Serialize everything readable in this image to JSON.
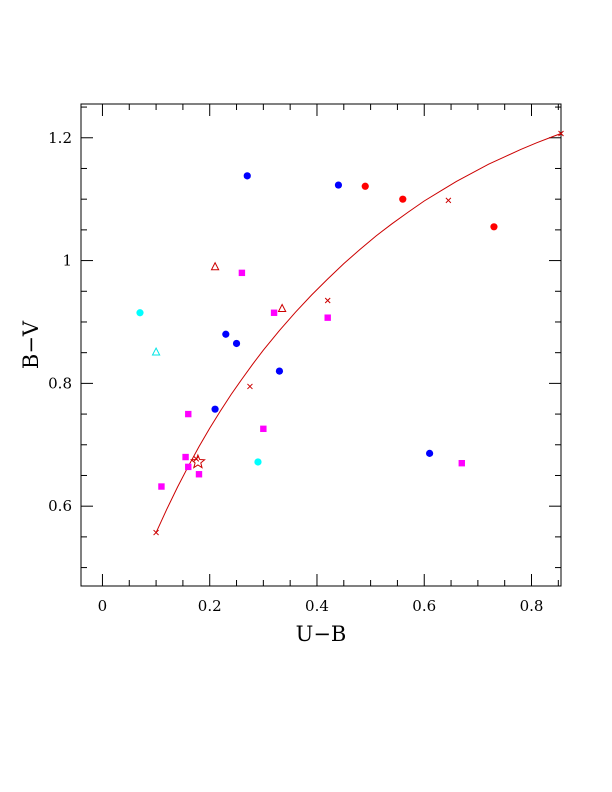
{
  "chart_data": {
    "type": "scatter",
    "xlabel": "U−B",
    "ylabel": "B−V",
    "xlim": [
      -0.04,
      0.855
    ],
    "ylim": [
      0.47,
      1.255
    ],
    "x_ticks": [
      0,
      0.2,
      0.4,
      0.6,
      0.8
    ],
    "x_tick_labels": [
      "0",
      "0.2",
      "0.4",
      "0.6",
      "0.8"
    ],
    "y_ticks": [
      0.6,
      0.8,
      1.0,
      1.2
    ],
    "y_tick_labels": [
      "0.6",
      "0.8",
      "1",
      "1.2"
    ],
    "grid": false,
    "series": [
      {
        "marker": "circle",
        "color": "#0000ff",
        "points": [
          [
            0.27,
            1.138
          ],
          [
            0.44,
            1.123
          ],
          [
            0.23,
            0.88
          ],
          [
            0.25,
            0.865
          ],
          [
            0.33,
            0.82
          ],
          [
            0.21,
            0.758
          ],
          [
            0.61,
            0.686
          ]
        ]
      },
      {
        "marker": "circle",
        "color": "#ff0000",
        "points": [
          [
            0.49,
            1.121
          ],
          [
            0.56,
            1.1
          ],
          [
            0.73,
            1.055
          ]
        ]
      },
      {
        "marker": "circle",
        "color": "#00ffff",
        "points": [
          [
            0.07,
            0.915
          ],
          [
            0.29,
            0.672
          ]
        ]
      },
      {
        "marker": "square",
        "color": "#ff00ff",
        "points": [
          [
            0.26,
            0.98
          ],
          [
            0.32,
            0.915
          ],
          [
            0.42,
            0.907
          ],
          [
            0.16,
            0.75
          ],
          [
            0.3,
            0.726
          ],
          [
            0.155,
            0.68
          ],
          [
            0.16,
            0.664
          ],
          [
            0.18,
            0.652
          ],
          [
            0.11,
            0.632
          ],
          [
            0.67,
            0.67
          ]
        ]
      },
      {
        "marker": "triangle",
        "color": "#cc0000",
        "points": [
          [
            0.21,
            0.99
          ],
          [
            0.335,
            0.922
          ]
        ]
      },
      {
        "marker": "triangle",
        "color": "#00e5e5",
        "points": [
          [
            0.1,
            0.851
          ]
        ]
      },
      {
        "marker": "star",
        "color": "#cc0000",
        "points": [
          [
            0.178,
            0.672
          ]
        ]
      }
    ],
    "curve": {
      "color": "#cc0000",
      "x": [
        0.1,
        0.12,
        0.14,
        0.16,
        0.18,
        0.2,
        0.22,
        0.24,
        0.26,
        0.28,
        0.3,
        0.33,
        0.36,
        0.39,
        0.42,
        0.45,
        0.48,
        0.51,
        0.54,
        0.57,
        0.6,
        0.63,
        0.66,
        0.69,
        0.72,
        0.75,
        0.78,
        0.81,
        0.84,
        0.855
      ],
      "y": [
        0.557,
        0.595,
        0.631,
        0.665,
        0.697,
        0.727,
        0.755,
        0.782,
        0.807,
        0.831,
        0.854,
        0.886,
        0.916,
        0.944,
        0.97,
        0.995,
        1.018,
        1.04,
        1.06,
        1.079,
        1.097,
        1.113,
        1.129,
        1.143,
        1.157,
        1.169,
        1.181,
        1.192,
        1.202,
        1.207
      ],
      "x_markers": [
        [
          0.1,
          0.557
        ],
        [
          0.175,
          0.677
        ],
        [
          0.275,
          0.795
        ],
        [
          0.42,
          0.935
        ],
        [
          0.645,
          1.098
        ],
        [
          0.855,
          1.207
        ]
      ]
    }
  }
}
